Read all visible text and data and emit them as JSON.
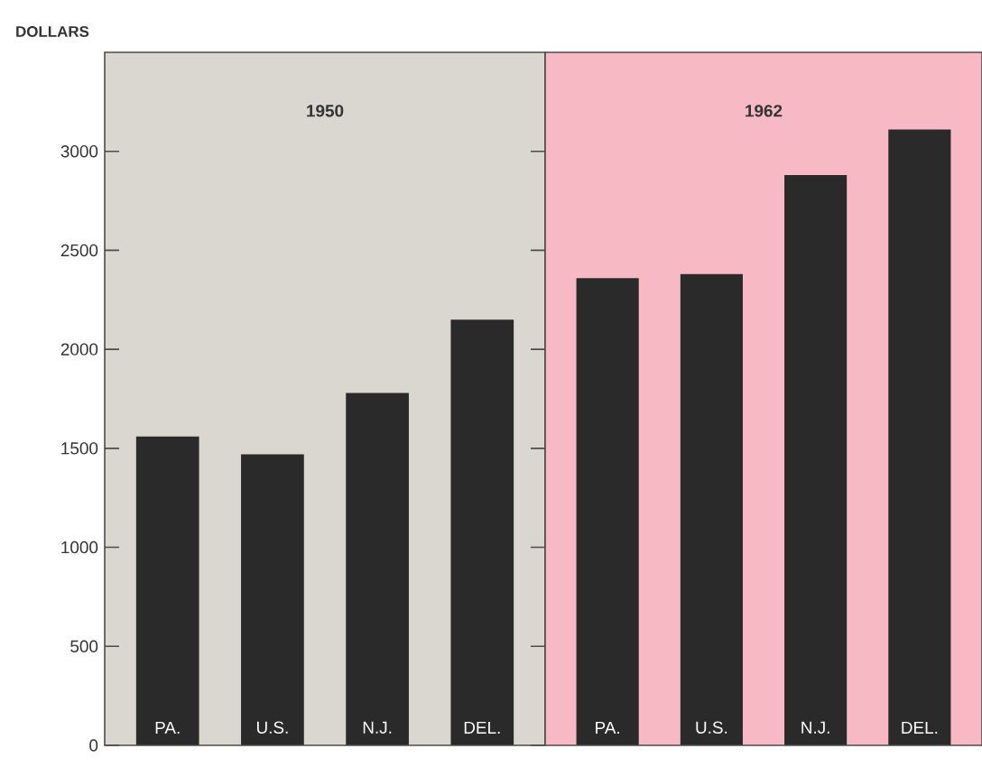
{
  "chart_data": [
    {
      "type": "bar",
      "title": "1950",
      "ylabel": "DOLLARS",
      "categories": [
        "PA.",
        "U.S.",
        "N.J.",
        "DEL."
      ],
      "values": [
        1560,
        1470,
        1780,
        2150
      ],
      "color": "#2a2a2a",
      "ylim": [
        0,
        3500
      ],
      "yticks": [
        0,
        500,
        1000,
        1500,
        2000,
        2500,
        3000
      ],
      "grid": false
    },
    {
      "type": "bar",
      "title": "1962",
      "categories": [
        "PA.",
        "U.S.",
        "N.J.",
        "DEL."
      ],
      "values": [
        2360,
        2380,
        2880,
        3110
      ],
      "color": "#2a2a2a",
      "ylim": [
        0,
        3500
      ],
      "tick_labels": "x",
      "grid": false
    }
  ]
}
